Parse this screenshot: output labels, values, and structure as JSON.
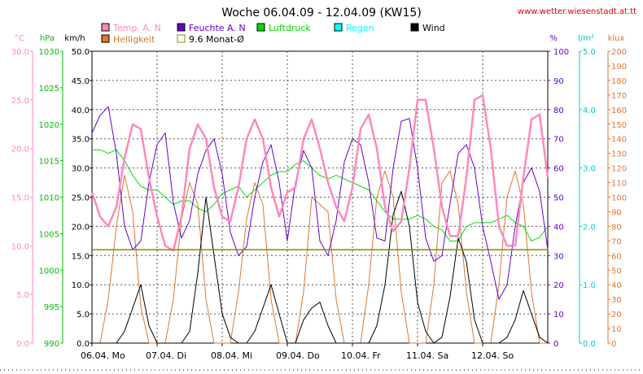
{
  "chart_data": {
    "type": "line",
    "title": "Woche 06.04.09 - 12.04.09 (KW15)",
    "watermark": "www.wetter.wiesenstadt.at.tt",
    "x_days": [
      "06.04. Mo",
      "07.04. Di",
      "08.04. Mi",
      "09.04. Do",
      "10.04. Fr",
      "11.04. Sa",
      "12.04. So"
    ],
    "x_range_hours": [
      0,
      168
    ],
    "axes": {
      "temp": {
        "unit": "°C",
        "min": 0,
        "max": 30,
        "ticks": [
          "0.0",
          "5.0",
          "10.0",
          "15.0",
          "20.0",
          "25.0",
          "30.0"
        ],
        "color": "#ff88bb"
      },
      "pressure": {
        "unit": "hPa",
        "min": 990,
        "max": 1030,
        "ticks": [
          "990",
          "995",
          "1000",
          "1005",
          "1010",
          "1015",
          "1020",
          "1025",
          "1030"
        ],
        "color": "#00bb00"
      },
      "wind": {
        "unit": "km/h",
        "min": 0,
        "max": 50,
        "ticks": [
          "0.0",
          "5.0",
          "10.0",
          "15.0",
          "20.0",
          "25.0",
          "30.0",
          "35.0",
          "40.0",
          "45.0",
          "50.0"
        ],
        "color": "#000000"
      },
      "humidity": {
        "unit": "%",
        "min": 0,
        "max": 100,
        "ticks": [
          "0",
          "10",
          "20",
          "30",
          "40",
          "50",
          "60",
          "70",
          "80",
          "90",
          "100"
        ],
        "color": "#6600cc"
      },
      "rain": {
        "unit": "l/m²",
        "min": 0,
        "max": 5,
        "ticks": [
          "0.0",
          "1.0",
          "2.0",
          "3.0",
          "4.0",
          "5.0"
        ],
        "color": "#00cccc"
      },
      "light": {
        "unit": "klux",
        "min": 0,
        "max": 200,
        "ticks": [
          "0",
          "10",
          "20",
          "30",
          "40",
          "50",
          "60",
          "70",
          "80",
          "90",
          "100",
          "110",
          "120",
          "130",
          "140",
          "150",
          "160",
          "170",
          "180",
          "190",
          "200"
        ],
        "color": "#dd7733"
      }
    },
    "legend": [
      {
        "name": "Temp. A. N",
        "color": "#ff88bb"
      },
      {
        "name": "Feuchte A. N",
        "color": "#6600cc"
      },
      {
        "name": "Luftdruck",
        "color": "#00dd00"
      },
      {
        "name": "Regen",
        "color": "#00ffff"
      },
      {
        "name": "Wind",
        "color": "#000000"
      },
      {
        "name": "Helligkeit",
        "color": "#dd7733"
      },
      {
        "name": "9.6 Monat-Ø",
        "color": "#888800"
      }
    ],
    "monthly_avg_temp": 9.6,
    "series": [
      {
        "name": "Temp. A. N",
        "axis": "temp",
        "x": [
          0,
          3,
          6,
          9,
          12,
          15,
          18,
          21,
          24,
          27,
          30,
          33,
          36,
          39,
          42,
          45,
          48,
          51,
          54,
          57,
          60,
          63,
          66,
          69,
          72,
          75,
          78,
          81,
          84,
          87,
          90,
          93,
          96,
          99,
          102,
          105,
          108,
          111,
          114,
          117,
          120,
          123,
          126,
          129,
          132,
          135,
          138,
          141,
          144,
          147,
          150,
          153,
          156,
          159,
          162,
          165,
          168
        ],
        "values": [
          15.5,
          13,
          12,
          14,
          19,
          22.5,
          22,
          17,
          13,
          10,
          9.5,
          13,
          20,
          22.5,
          21,
          16,
          13,
          12.5,
          16,
          21,
          23,
          21,
          16,
          13,
          15.5,
          16,
          21,
          23,
          20,
          16.5,
          14,
          12.5,
          16,
          22,
          23.5,
          20,
          14,
          11.5,
          12.5,
          18,
          25,
          25,
          20,
          14,
          11,
          11,
          17,
          25,
          25.5,
          20,
          12,
          10,
          10,
          17,
          23,
          23.5,
          17
        ]
      },
      {
        "name": "Feuchte A. N",
        "axis": "humidity",
        "x": [
          0,
          3,
          6,
          9,
          12,
          15,
          18,
          21,
          24,
          27,
          30,
          33,
          36,
          39,
          42,
          45,
          48,
          51,
          54,
          57,
          60,
          63,
          66,
          69,
          72,
          75,
          78,
          81,
          84,
          87,
          90,
          93,
          96,
          99,
          102,
          105,
          108,
          111,
          114,
          117,
          120,
          123,
          126,
          129,
          132,
          135,
          138,
          141,
          144,
          147,
          150,
          153,
          156,
          159,
          162,
          165,
          168
        ],
        "values": [
          72,
          78,
          81,
          65,
          40,
          32,
          35,
          55,
          68,
          72,
          48,
          36,
          42,
          58,
          66,
          70,
          58,
          38,
          30,
          33,
          50,
          62,
          68,
          55,
          35,
          55,
          66,
          60,
          35,
          30,
          42,
          62,
          70,
          68,
          55,
          36,
          35,
          60,
          76,
          77,
          60,
          36,
          28,
          30,
          48,
          65,
          68,
          60,
          40,
          28,
          15,
          20,
          40,
          55,
          60,
          52,
          32
        ]
      },
      {
        "name": "Luftdruck",
        "axis": "pressure",
        "x": [
          0,
          3,
          6,
          9,
          12,
          15,
          18,
          21,
          24,
          27,
          30,
          33,
          36,
          39,
          42,
          45,
          48,
          51,
          54,
          57,
          60,
          63,
          66,
          69,
          72,
          75,
          78,
          81,
          84,
          87,
          90,
          93,
          96,
          99,
          102,
          105,
          108,
          111,
          114,
          117,
          120,
          123,
          126,
          129,
          132,
          135,
          138,
          141,
          144,
          147,
          150,
          153,
          156,
          159,
          162,
          165,
          168
        ],
        "values": [
          1016.5,
          1016.5,
          1016,
          1016.5,
          1015,
          1013,
          1011.5,
          1011,
          1011,
          1010,
          1009,
          1009.5,
          1009.5,
          1008.5,
          1008,
          1009,
          1010.5,
          1011,
          1011.5,
          1010,
          1011,
          1012,
          1013,
          1013.5,
          1013.5,
          1014.5,
          1015,
          1014,
          1013,
          1012.5,
          1013,
          1012.5,
          1012,
          1011.5,
          1011,
          1009.5,
          1008,
          1007,
          1007,
          1007,
          1007.5,
          1007,
          1006,
          1005.5,
          1004,
          1004,
          1006,
          1006.5,
          1006.5,
          1006.5,
          1007,
          1007.5,
          1006.5,
          1006,
          1004,
          1004.5,
          1006
        ]
      },
      {
        "name": "Wind",
        "axis": "wind",
        "x": [
          0,
          3,
          6,
          9,
          12,
          15,
          18,
          21,
          24,
          27,
          30,
          33,
          36,
          39,
          42,
          45,
          48,
          51,
          54,
          57,
          60,
          63,
          66,
          69,
          72,
          75,
          78,
          81,
          84,
          87,
          90,
          93,
          96,
          99,
          102,
          105,
          108,
          111,
          114,
          117,
          120,
          123,
          126,
          129,
          132,
          135,
          138,
          141,
          144,
          147,
          150,
          153,
          156,
          159,
          162,
          165,
          168
        ],
        "values": [
          0,
          0,
          0,
          0,
          2,
          6,
          10,
          3,
          0,
          0,
          0,
          0,
          2,
          12,
          25,
          15,
          5,
          1,
          0,
          0,
          2,
          6,
          10,
          5,
          0,
          0,
          4,
          6,
          7,
          3,
          0,
          0,
          0,
          0,
          0,
          3,
          10,
          22,
          26,
          20,
          7,
          2,
          0,
          1,
          8,
          18,
          14,
          4,
          0,
          0,
          0,
          1,
          4,
          9,
          5,
          1,
          0
        ]
      },
      {
        "name": "Helligkeit",
        "axis": "light",
        "x": [
          0,
          3,
          6,
          9,
          12,
          15,
          18,
          21,
          24,
          27,
          30,
          33,
          36,
          39,
          42,
          45,
          48,
          51,
          54,
          57,
          60,
          63,
          66,
          69,
          72,
          75,
          78,
          81,
          84,
          87,
          90,
          93,
          96,
          99,
          102,
          105,
          108,
          111,
          114,
          117,
          120,
          123,
          126,
          129,
          132,
          135,
          138,
          141,
          144,
          147,
          150,
          153,
          156,
          159,
          162,
          165,
          168
        ],
        "values": [
          0,
          0,
          30,
          80,
          115,
          90,
          25,
          0,
          0,
          0,
          30,
          85,
          110,
          95,
          30,
          0,
          0,
          0,
          35,
          85,
          110,
          95,
          30,
          0,
          0,
          0,
          35,
          100,
          95,
          90,
          30,
          0,
          0,
          0,
          40,
          100,
          118,
          100,
          35,
          0,
          0,
          0,
          40,
          110,
          118,
          95,
          35,
          0,
          0,
          0,
          40,
          100,
          118,
          95,
          35,
          0,
          0
        ]
      }
    ]
  }
}
